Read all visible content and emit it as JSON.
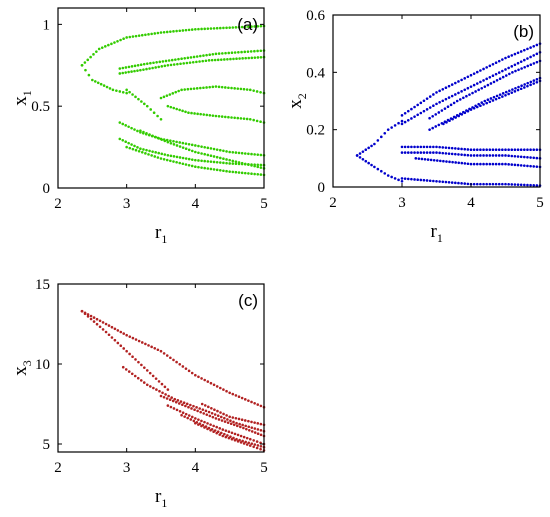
{
  "chart_data": [
    {
      "type": "scatter",
      "panel": "(a)",
      "xlabel": {
        "main": "r",
        "sub": "1"
      },
      "ylabel": {
        "main": "x",
        "sub": "1"
      },
      "xlim": [
        2,
        5
      ],
      "ylim": [
        0,
        1.1
      ],
      "xticks": [
        "2",
        "3",
        "4",
        "5"
      ],
      "yticks": [
        "0",
        "0.5",
        "1"
      ],
      "ytick_values": [
        0,
        0.5,
        1
      ],
      "xtick_values": [
        2,
        3,
        4,
        5
      ],
      "color": "#33cc00",
      "series": [
        {
          "branches": [
            {
              "r": [
                2.35,
                2.6,
                3.0,
                3.5,
                4.0,
                4.5,
                5.0
              ],
              "x": [
                0.75,
                0.85,
                0.92,
                0.95,
                0.97,
                0.98,
                0.99
              ]
            },
            {
              "r": [
                2.35,
                2.5,
                2.8,
                3.0
              ],
              "x": [
                0.75,
                0.66,
                0.6,
                0.58
              ]
            },
            {
              "r": [
                2.9,
                3.3,
                3.8,
                4.3,
                5.0
              ],
              "x": [
                0.73,
                0.76,
                0.79,
                0.82,
                0.84
              ]
            },
            {
              "r": [
                2.9,
                3.2,
                3.6,
                4.2,
                5.0
              ],
              "x": [
                0.7,
                0.72,
                0.75,
                0.78,
                0.8
              ]
            },
            {
              "r": [
                3.5,
                3.8,
                4.3,
                4.8,
                5.0
              ],
              "x": [
                0.55,
                0.6,
                0.62,
                0.6,
                0.58
              ]
            },
            {
              "r": [
                3.6,
                3.9,
                4.3,
                4.8,
                5.0
              ],
              "x": [
                0.5,
                0.46,
                0.44,
                0.42,
                0.4
              ]
            },
            {
              "r": [
                3.0,
                3.3,
                3.5
              ],
              "x": [
                0.6,
                0.5,
                0.42
              ]
            },
            {
              "r": [
                2.9,
                3.2,
                3.5,
                4.0,
                4.5,
                5.0
              ],
              "x": [
                0.4,
                0.34,
                0.3,
                0.26,
                0.22,
                0.2
              ]
            },
            {
              "r": [
                2.9,
                3.2,
                3.6,
                4.0,
                4.5,
                5.0
              ],
              "x": [
                0.3,
                0.24,
                0.2,
                0.17,
                0.15,
                0.14
              ]
            },
            {
              "r": [
                3.0,
                3.5,
                4.0,
                4.5,
                5.0
              ],
              "x": [
                0.25,
                0.18,
                0.13,
                0.1,
                0.08
              ]
            },
            {
              "r": [
                3.2,
                3.6,
                4.0,
                4.5,
                5.0
              ],
              "x": [
                0.35,
                0.28,
                0.22,
                0.17,
                0.12
              ]
            }
          ]
        }
      ]
    },
    {
      "type": "scatter",
      "panel": "(b)",
      "xlabel": {
        "main": "r",
        "sub": "1"
      },
      "ylabel": {
        "main": "x",
        "sub": "2"
      },
      "xlim": [
        2,
        5
      ],
      "ylim": [
        0,
        0.6
      ],
      "xticks": [
        "2",
        "3",
        "4",
        "5"
      ],
      "yticks": [
        "0",
        "0.2",
        "0.4",
        "0.6"
      ],
      "ytick_values": [
        0,
        0.2,
        0.4,
        0.6
      ],
      "xtick_values": [
        2,
        3,
        4,
        5
      ],
      "color": "#0000cc",
      "series": [
        {
          "branches": [
            {
              "r": [
                2.35,
                2.6,
                2.8,
                3.0
              ],
              "x": [
                0.11,
                0.15,
                0.2,
                0.23
              ]
            },
            {
              "r": [
                2.35,
                2.6,
                2.8,
                3.0
              ],
              "x": [
                0.11,
                0.07,
                0.04,
                0.02
              ]
            },
            {
              "r": [
                3.0,
                3.5,
                4.0,
                4.5,
                5.0
              ],
              "x": [
                0.25,
                0.33,
                0.39,
                0.45,
                0.5
              ]
            },
            {
              "r": [
                3.0,
                3.5,
                4.0,
                4.5,
                5.0
              ],
              "x": [
                0.22,
                0.29,
                0.35,
                0.41,
                0.47
              ]
            },
            {
              "r": [
                3.4,
                3.8,
                4.2,
                4.6,
                5.0
              ],
              "x": [
                0.24,
                0.3,
                0.35,
                0.4,
                0.44
              ]
            },
            {
              "r": [
                3.4,
                3.8,
                4.2,
                4.6,
                5.0
              ],
              "x": [
                0.2,
                0.25,
                0.3,
                0.34,
                0.38
              ]
            },
            {
              "r": [
                3.6,
                4.0,
                4.5,
                5.0
              ],
              "x": [
                0.22,
                0.27,
                0.32,
                0.37
              ]
            },
            {
              "r": [
                3.0,
                3.5,
                4.0,
                4.5,
                5.0
              ],
              "x": [
                0.14,
                0.14,
                0.13,
                0.13,
                0.13
              ]
            },
            {
              "r": [
                3.0,
                3.5,
                4.0,
                4.5,
                5.0
              ],
              "x": [
                0.12,
                0.12,
                0.11,
                0.11,
                0.1
              ]
            },
            {
              "r": [
                3.2,
                3.6,
                4.0,
                4.5,
                5.0
              ],
              "x": [
                0.1,
                0.09,
                0.08,
                0.08,
                0.07
              ]
            },
            {
              "r": [
                3.0,
                3.5,
                4.0,
                4.5,
                5.0
              ],
              "x": [
                0.03,
                0.02,
                0.01,
                0.01,
                0.005
              ]
            }
          ]
        }
      ]
    },
    {
      "type": "scatter",
      "panel": "(c)",
      "xlabel": {
        "main": "r",
        "sub": "1"
      },
      "ylabel": {
        "main": "x",
        "sub": "3"
      },
      "xlim": [
        2,
        5
      ],
      "ylim": [
        4.5,
        15
      ],
      "xticks": [
        "2",
        "3",
        "4",
        "5"
      ],
      "yticks": [
        "5",
        "10",
        "15"
      ],
      "ytick_values": [
        5,
        10,
        15
      ],
      "xtick_values": [
        2,
        3,
        4,
        5
      ],
      "color": "#b22222",
      "series": [
        {
          "branches": [
            {
              "r": [
                2.35,
                2.7,
                3.0,
                3.5,
                4.0,
                4.5,
                5.0
              ],
              "x": [
                13.3,
                12.5,
                11.8,
                10.8,
                9.3,
                8.2,
                7.3
              ]
            },
            {
              "r": [
                2.35,
                2.7,
                3.0,
                3.3,
                3.6
              ],
              "x": [
                13.3,
                12.0,
                10.8,
                9.6,
                8.4
              ]
            },
            {
              "r": [
                2.95,
                3.3,
                3.7,
                4.2,
                4.6,
                5.0
              ],
              "x": [
                9.8,
                8.7,
                7.8,
                7.0,
                6.3,
                5.8
              ]
            },
            {
              "r": [
                3.5,
                3.9,
                4.3,
                4.7,
                5.0
              ],
              "x": [
                8.0,
                7.3,
                6.6,
                6.0,
                5.5
              ]
            },
            {
              "r": [
                3.6,
                4.0,
                4.4,
                4.8,
                5.0
              ],
              "x": [
                7.4,
                6.6,
                5.9,
                5.3,
                5.0
              ]
            },
            {
              "r": [
                3.8,
                4.2,
                4.6,
                5.0
              ],
              "x": [
                6.8,
                6.0,
                5.3,
                4.8
              ]
            },
            {
              "r": [
                4.0,
                4.4,
                4.8,
                5.0
              ],
              "x": [
                6.3,
                5.5,
                4.9,
                4.6
              ]
            },
            {
              "r": [
                4.1,
                4.5,
                5.0
              ],
              "x": [
                7.5,
                6.7,
                6.2
              ]
            }
          ]
        }
      ]
    }
  ]
}
